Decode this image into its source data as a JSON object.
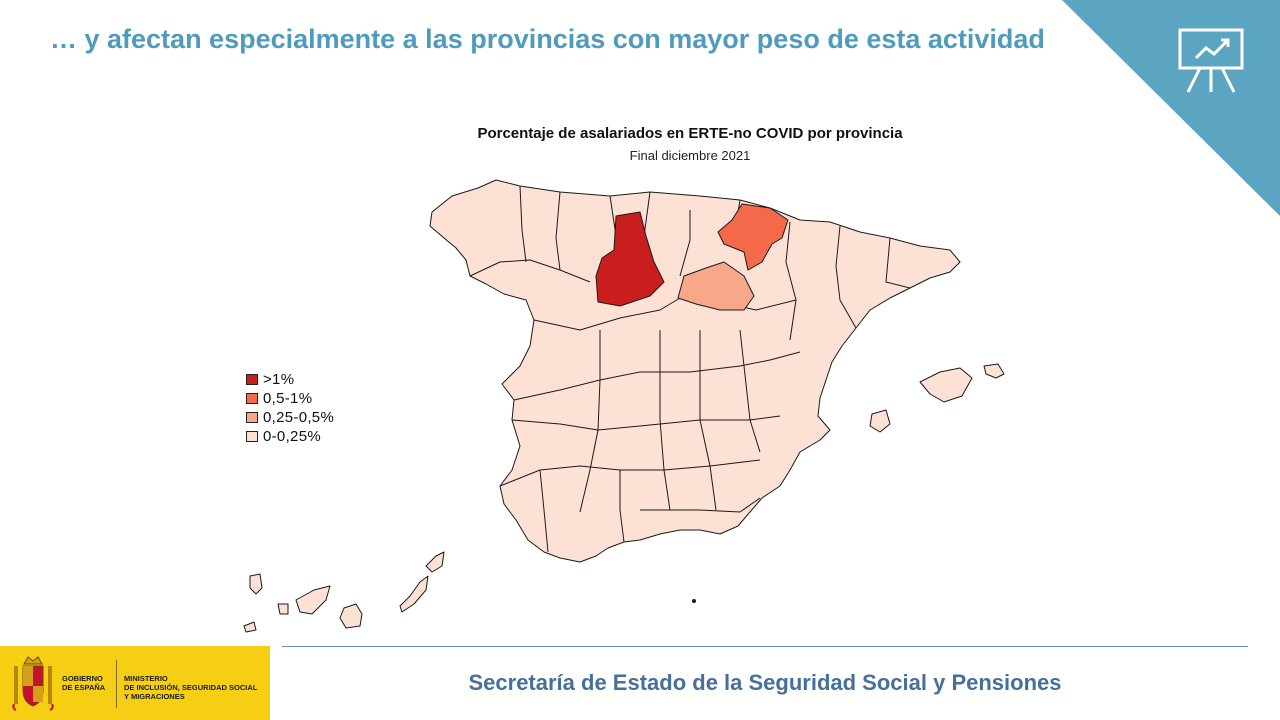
{
  "header": {
    "title": "… y afectan especialmente a las provincias con mayor peso de esta actividad",
    "icon": "presentation-chart-icon",
    "corner_color": "#5ca5c2"
  },
  "map": {
    "title": "Porcentaje de asalariados en ERTE-no COVID por provincia",
    "subtitle": "Final diciembre 2021",
    "highlighted_provinces": [
      {
        "name": "Burgos",
        "category": ">1%"
      },
      {
        "name": "Navarra",
        "category": "0,5-1%"
      },
      {
        "name": "Soria",
        "category": "0,25-0,5%"
      }
    ],
    "base_category": "0-0,25%"
  },
  "legend": {
    "items": [
      {
        "label": ">1%",
        "color": "#c81e1e"
      },
      {
        "label": "0,5-1%",
        "color": "#f4694a"
      },
      {
        "label": "0,25-0,5%",
        "color": "#f8a888"
      },
      {
        "label": "0-0,25%",
        "color": "#fde1d4"
      }
    ]
  },
  "footer": {
    "text": "Secretaría de Estado de la Seguridad Social y Pensiones"
  },
  "government": {
    "line1": "GOBIERNO",
    "line2": "DE ESPAÑA",
    "ministry1": "MINISTERIO",
    "ministry2": "DE INCLUSIÓN, SEGURIDAD SOCIAL",
    "ministry3": "Y MIGRACIONES",
    "crest_icon": "coat-of-arms-icon",
    "brand_color": "#f6cf14"
  }
}
